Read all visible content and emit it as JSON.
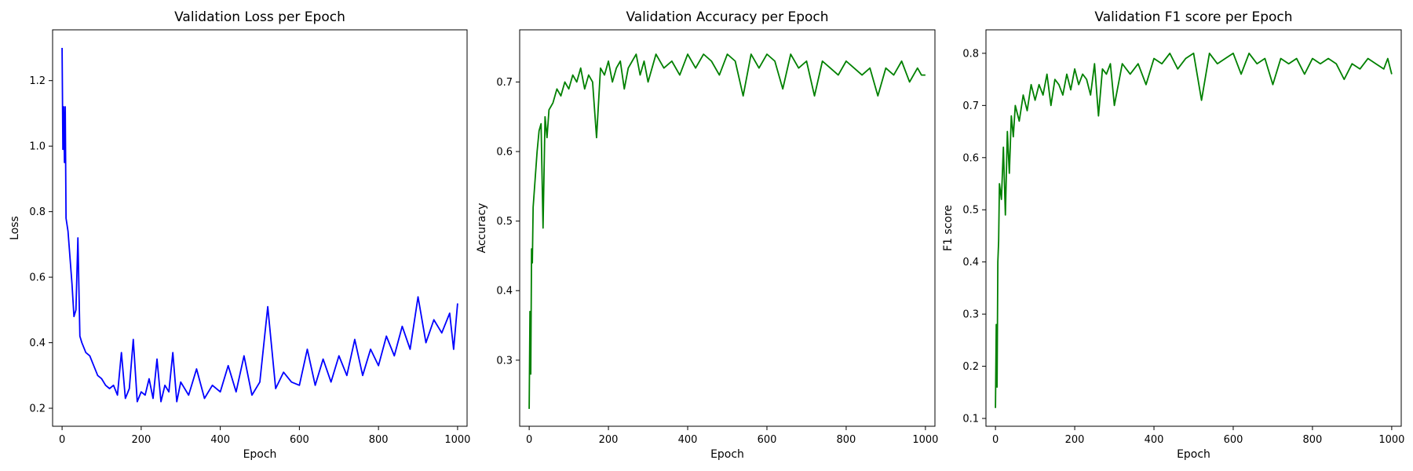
{
  "chart_data": [
    {
      "id": "loss",
      "type": "line",
      "title": "Validation Loss per Epoch",
      "xlabel": "Epoch",
      "ylabel": "Loss",
      "xlim": [
        -24,
        1024
      ],
      "ylim": [
        0.145,
        1.355
      ],
      "xticks": [
        0,
        200,
        400,
        600,
        800,
        1000
      ],
      "yticks": [
        0.2,
        0.4,
        0.6,
        0.8,
        1.0,
        1.2
      ],
      "ytick_labels": [
        "0.2",
        "0.4",
        "0.6",
        "0.8",
        "1.0",
        "1.2"
      ],
      "grid": false,
      "color": "#0000ff",
      "x": [
        0,
        2,
        4,
        6,
        8,
        10,
        15,
        20,
        25,
        30,
        35,
        40,
        45,
        50,
        60,
        70,
        80,
        90,
        100,
        110,
        120,
        130,
        140,
        150,
        160,
        170,
        180,
        190,
        200,
        210,
        220,
        230,
        240,
        250,
        260,
        270,
        280,
        290,
        300,
        320,
        340,
        360,
        380,
        400,
        420,
        440,
        460,
        480,
        500,
        520,
        540,
        560,
        580,
        600,
        620,
        640,
        660,
        680,
        700,
        720,
        740,
        760,
        780,
        800,
        820,
        840,
        860,
        880,
        900,
        920,
        940,
        960,
        980,
        990,
        1000
      ],
      "y": [
        1.3,
        0.99,
        1.12,
        0.95,
        1.12,
        0.78,
        0.74,
        0.66,
        0.58,
        0.48,
        0.5,
        0.72,
        0.42,
        0.4,
        0.37,
        0.36,
        0.33,
        0.3,
        0.29,
        0.27,
        0.26,
        0.27,
        0.24,
        0.37,
        0.23,
        0.26,
        0.41,
        0.22,
        0.25,
        0.24,
        0.29,
        0.23,
        0.35,
        0.22,
        0.27,
        0.25,
        0.37,
        0.22,
        0.28,
        0.24,
        0.32,
        0.23,
        0.27,
        0.25,
        0.33,
        0.25,
        0.36,
        0.24,
        0.28,
        0.51,
        0.26,
        0.31,
        0.28,
        0.27,
        0.38,
        0.27,
        0.35,
        0.28,
        0.36,
        0.3,
        0.41,
        0.3,
        0.38,
        0.33,
        0.42,
        0.36,
        0.45,
        0.38,
        0.54,
        0.4,
        0.47,
        0.43,
        0.49,
        0.38,
        0.52
      ]
    },
    {
      "id": "accuracy",
      "type": "line",
      "title": "Validation Accuracy per Epoch",
      "xlabel": "Epoch",
      "ylabel": "Accuracy",
      "xlim": [
        -24,
        1024
      ],
      "ylim": [
        0.205,
        0.775
      ],
      "xticks": [
        0,
        200,
        400,
        600,
        800,
        1000
      ],
      "yticks": [
        0.3,
        0.4,
        0.5,
        0.6,
        0.7
      ],
      "ytick_labels": [
        "0.3",
        "0.4",
        "0.5",
        "0.6",
        "0.7"
      ],
      "grid": false,
      "color": "#008000",
      "x": [
        0,
        2,
        4,
        6,
        8,
        10,
        15,
        20,
        25,
        30,
        35,
        40,
        45,
        50,
        60,
        70,
        80,
        90,
        100,
        110,
        120,
        130,
        140,
        150,
        160,
        170,
        180,
        190,
        200,
        210,
        220,
        230,
        240,
        250,
        260,
        270,
        280,
        290,
        300,
        320,
        340,
        360,
        380,
        400,
        420,
        440,
        460,
        480,
        500,
        520,
        540,
        560,
        580,
        600,
        620,
        640,
        660,
        680,
        700,
        720,
        740,
        760,
        780,
        800,
        820,
        840,
        860,
        880,
        900,
        920,
        940,
        960,
        980,
        990,
        1000
      ],
      "y": [
        0.23,
        0.37,
        0.28,
        0.46,
        0.44,
        0.52,
        0.56,
        0.6,
        0.63,
        0.64,
        0.49,
        0.65,
        0.62,
        0.66,
        0.67,
        0.69,
        0.68,
        0.7,
        0.69,
        0.71,
        0.7,
        0.72,
        0.69,
        0.71,
        0.7,
        0.62,
        0.72,
        0.71,
        0.73,
        0.7,
        0.72,
        0.73,
        0.69,
        0.72,
        0.73,
        0.74,
        0.71,
        0.73,
        0.7,
        0.74,
        0.72,
        0.73,
        0.71,
        0.74,
        0.72,
        0.74,
        0.73,
        0.71,
        0.74,
        0.73,
        0.68,
        0.74,
        0.72,
        0.74,
        0.73,
        0.69,
        0.74,
        0.72,
        0.73,
        0.68,
        0.73,
        0.72,
        0.71,
        0.73,
        0.72,
        0.71,
        0.72,
        0.68,
        0.72,
        0.71,
        0.73,
        0.7,
        0.72,
        0.71,
        0.71
      ]
    },
    {
      "id": "f1",
      "type": "line",
      "title": "Validation F1 score per Epoch",
      "xlabel": "Epoch",
      "ylabel": "F1 score",
      "xlim": [
        -24,
        1024
      ],
      "ylim": [
        0.085,
        0.845
      ],
      "xticks": [
        0,
        200,
        400,
        600,
        800,
        1000
      ],
      "yticks": [
        0.1,
        0.2,
        0.3,
        0.4,
        0.5,
        0.6,
        0.7,
        0.8
      ],
      "ytick_labels": [
        "0.1",
        "0.2",
        "0.3",
        "0.4",
        "0.5",
        "0.6",
        "0.7",
        "0.8"
      ],
      "grid": false,
      "color": "#008000",
      "x": [
        0,
        2,
        4,
        6,
        8,
        10,
        15,
        20,
        25,
        30,
        35,
        40,
        45,
        50,
        60,
        70,
        80,
        90,
        100,
        110,
        120,
        130,
        140,
        150,
        160,
        170,
        180,
        190,
        200,
        210,
        220,
        230,
        240,
        250,
        260,
        270,
        280,
        290,
        300,
        320,
        340,
        360,
        380,
        400,
        420,
        440,
        460,
        480,
        500,
        520,
        540,
        560,
        580,
        600,
        620,
        640,
        660,
        680,
        700,
        720,
        740,
        760,
        780,
        800,
        820,
        840,
        860,
        880,
        900,
        920,
        940,
        960,
        980,
        990,
        1000
      ],
      "y": [
        0.12,
        0.28,
        0.16,
        0.4,
        0.44,
        0.55,
        0.52,
        0.62,
        0.49,
        0.65,
        0.57,
        0.68,
        0.64,
        0.7,
        0.67,
        0.72,
        0.69,
        0.74,
        0.71,
        0.74,
        0.72,
        0.76,
        0.7,
        0.75,
        0.74,
        0.72,
        0.76,
        0.73,
        0.77,
        0.74,
        0.76,
        0.75,
        0.72,
        0.78,
        0.68,
        0.77,
        0.76,
        0.78,
        0.7,
        0.78,
        0.76,
        0.78,
        0.74,
        0.79,
        0.78,
        0.8,
        0.77,
        0.79,
        0.8,
        0.71,
        0.8,
        0.78,
        0.79,
        0.8,
        0.76,
        0.8,
        0.78,
        0.79,
        0.74,
        0.79,
        0.78,
        0.79,
        0.76,
        0.79,
        0.78,
        0.79,
        0.78,
        0.75,
        0.78,
        0.77,
        0.79,
        0.78,
        0.77,
        0.79,
        0.76
      ]
    }
  ]
}
